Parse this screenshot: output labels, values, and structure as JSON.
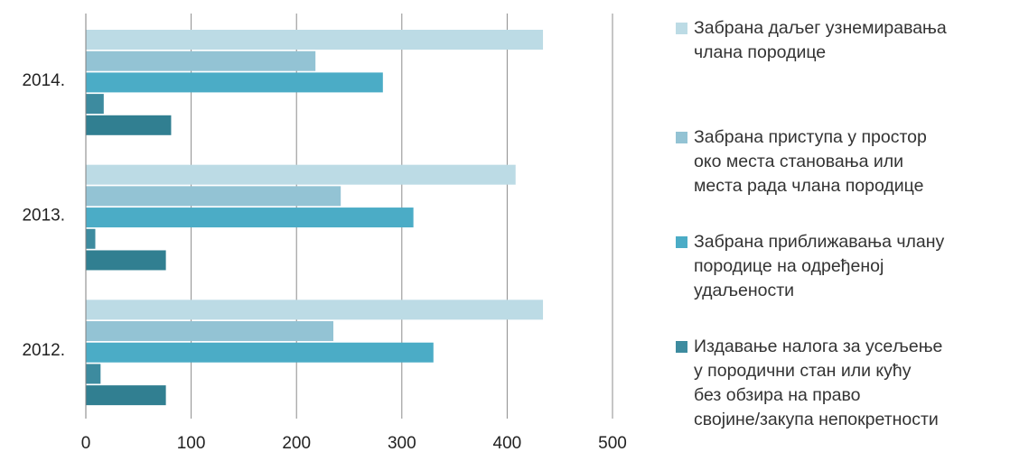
{
  "chart_data": {
    "type": "bar",
    "orientation": "horizontal",
    "categories": [
      "2014.",
      "2013.",
      "2012."
    ],
    "series": [
      {
        "name": "Забрана даљег узнемиравања\nчлана породице",
        "color": "#bcdbe5",
        "values": [
          434,
          408,
          434
        ]
      },
      {
        "name": "Забрана приступа у простор\nоко места становања или\nместа рада члана породице",
        "color": "#93c3d4",
        "values": [
          218,
          242,
          235
        ]
      },
      {
        "name": "Забрана приближавања члану\nпородице на одређеној\nудаљености",
        "color": "#4bacc6",
        "values": [
          282,
          311,
          330
        ]
      },
      {
        "name": "Издавање налога за усељење\nу породични стан или кућу\nбез обзира на право\nсвојине/закупа непокретности",
        "color": "#3d8b9f",
        "values": [
          17,
          9,
          14
        ]
      },
      {
        "name": "",
        "color": "#317f91",
        "values": [
          81,
          76,
          76
        ]
      }
    ],
    "x_ticks": [
      "0",
      "100",
      "200",
      "300",
      "400",
      "500"
    ],
    "xlim": [
      0,
      500
    ],
    "grid": "vertical",
    "legend_position": "right",
    "title": "",
    "xlabel": "",
    "ylabel": ""
  }
}
